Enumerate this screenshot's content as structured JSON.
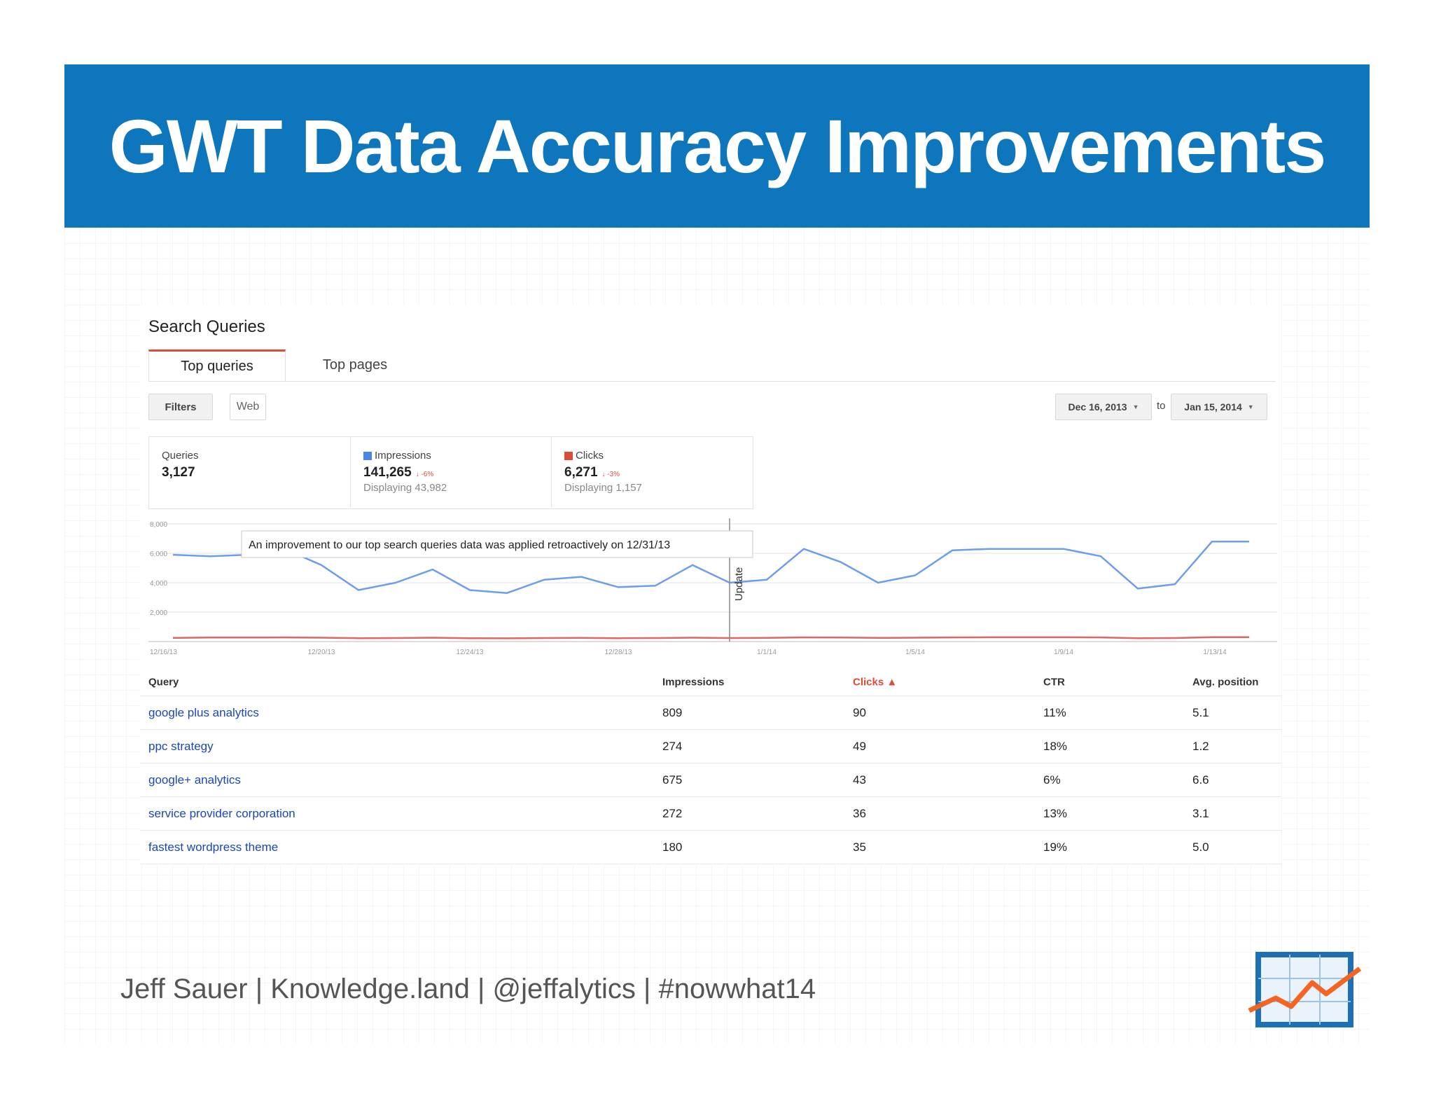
{
  "slide": {
    "title": "GWT Data Accuracy Improvements",
    "footer": "Jeff Sauer | Knowledge.land | @jeffalytics | #nowwhat14"
  },
  "search_queries": {
    "heading": "Search Queries",
    "tabs": [
      "Top queries",
      "Top pages"
    ],
    "filters_label": "Filters",
    "web_label": "Web",
    "date_start": "Dec 16, 2013",
    "date_to": "to",
    "date_end": "Jan 15, 2014"
  },
  "stats": {
    "queries": {
      "label": "Queries",
      "value": "3,127"
    },
    "impressions": {
      "label": "Impressions",
      "value": "141,265",
      "change": "↓ -6%",
      "displaying": "Displaying 43,982",
      "color": "#4a86e8"
    },
    "clicks": {
      "label": "Clicks",
      "value": "6,271",
      "change": "↓ -3%",
      "displaying": "Displaying 1,157",
      "color": "#dd4b39"
    }
  },
  "chart_data": {
    "type": "line",
    "annotation": "An improvement to our top search queries data was applied retroactively on 12/31/13",
    "marker_label": "Update",
    "marker_x": "12/31/13",
    "y_ticks": [
      "8,000",
      "6,000",
      "4,000",
      "2,000"
    ],
    "ylim": [
      0,
      8000
    ],
    "x_tick_labels": [
      "12/16/13",
      "12/20/13",
      "12/24/13",
      "12/28/13",
      "1/1/14",
      "1/5/14",
      "1/9/14",
      "1/13/14"
    ],
    "x": [
      "12/16/13",
      "12/17/13",
      "12/18/13",
      "12/19/13",
      "12/20/13",
      "12/21/13",
      "12/22/13",
      "12/23/13",
      "12/24/13",
      "12/25/13",
      "12/26/13",
      "12/27/13",
      "12/28/13",
      "12/29/13",
      "12/30/13",
      "12/31/13",
      "1/1/14",
      "1/2/14",
      "1/3/14",
      "1/4/14",
      "1/5/14",
      "1/6/14",
      "1/7/14",
      "1/8/14",
      "1/9/14",
      "1/10/14",
      "1/11/14",
      "1/12/14",
      "1/13/14",
      "1/14/14"
    ],
    "series": [
      {
        "name": "Impressions",
        "color": "#6d9eeb",
        "values": [
          5900,
          5800,
          5900,
          6300,
          5200,
          3500,
          4000,
          4900,
          3500,
          3300,
          4200,
          4400,
          3700,
          3800,
          5200,
          4000,
          4200,
          6300,
          5400,
          4000,
          4500,
          6200,
          6300,
          6300,
          6300,
          5800,
          3600,
          3900,
          6800,
          6800
        ]
      },
      {
        "name": "Clicks",
        "color": "#e06666",
        "values": [
          250,
          270,
          270,
          280,
          260,
          230,
          240,
          260,
          230,
          220,
          240,
          250,
          230,
          240,
          260,
          240,
          250,
          280,
          270,
          250,
          260,
          280,
          290,
          290,
          290,
          280,
          230,
          240,
          300,
          300
        ]
      }
    ]
  },
  "table": {
    "headers": [
      "Query",
      "Impressions",
      "Clicks ▲",
      "CTR",
      "Avg. position"
    ],
    "rows": [
      [
        "google plus analytics",
        "809",
        "90",
        "11%",
        "5.1"
      ],
      [
        "ppc strategy",
        "274",
        "49",
        "18%",
        "1.2"
      ],
      [
        "google+ analytics",
        "675",
        "43",
        "6%",
        "6.6"
      ],
      [
        "service provider corporation",
        "272",
        "36",
        "13%",
        "3.1"
      ],
      [
        "fastest wordpress theme",
        "180",
        "35",
        "19%",
        "5.0"
      ]
    ]
  }
}
